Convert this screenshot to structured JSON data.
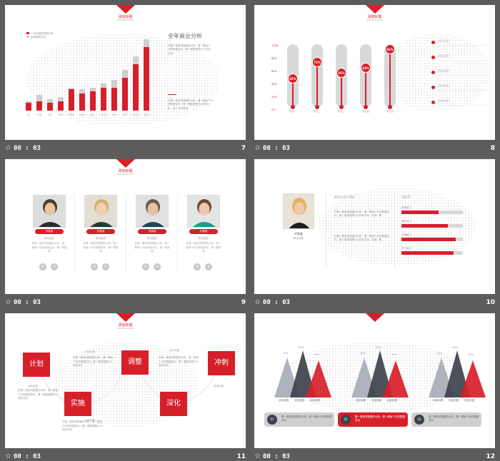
{
  "common": {
    "slide_tag": "添加标题",
    "subtitle": "PRESENTATION",
    "time": "00 : 03",
    "star": "☆"
  },
  "slides": [
    {
      "number": "7",
      "title": "全年商业分析",
      "legend": [
        "一年的销售数据分析",
        "定期数据分析"
      ],
      "categories": [
        "JA",
        "FEB",
        "MA",
        "APR",
        "MAY",
        "JUN",
        "JUL",
        "AUG",
        "SEP",
        "OCT",
        "NOV",
        "DEC"
      ],
      "body1": "在看一看某项数据的分析，看一看每个月的数据变化，看一看数据是什么样的分析",
      "body2": "在看一看某项数据的分析，看一看每个月的数据变化，看一看数据是什么样的分析，每个月的数据"
    },
    {
      "number": "8",
      "ticks": [
        "100%",
        "80%",
        "60%",
        "40%",
        "20%",
        "0%"
      ],
      "bars": [
        {
          "pct": "45%",
          "value": 45,
          "label": "学业一"
        },
        {
          "pct": "72%",
          "value": 72,
          "label": "学业二"
        },
        {
          "pct": "55%",
          "value": 55,
          "label": "学业三"
        },
        {
          "pct": "63%",
          "value": 63,
          "label": "学业四"
        },
        {
          "pct": "92%",
          "value": 92,
          "label": "学业五"
        }
      ],
      "years": [
        "2011年",
        "2012年",
        "2014年",
        "2015年",
        "2000年"
      ]
    },
    {
      "number": "9",
      "people": [
        {
          "name": "代表者",
          "role": "职位描述"
        },
        {
          "name": "代表者",
          "role": "职位描述"
        },
        {
          "name": "代表者",
          "role": "职位描述"
        },
        {
          "name": "代表者",
          "role": "职位描述"
        }
      ],
      "desc": "在看一看某项数据的分析，看一看每个月的数据变化，看一看数据"
    },
    {
      "number": "10",
      "about_title": "About Me",
      "skill_title": "Skill",
      "name": "代表者",
      "role": "职位描述",
      "about1": "在看一看某项数据的分析，看一看每个月的数据变化，看一看数据是什么样的分析，在看一看",
      "about2": "在看一看某项数据的分析，看一看每个月的数据变化，看一看数据是什么样的分析，在看一看",
      "skills": [
        {
          "label": "资源能力",
          "value": 60
        },
        {
          "label": "团队能力",
          "value": 75
        },
        {
          "label": "沟通能力",
          "value": 88
        },
        {
          "label": "学习能力",
          "value": 85
        }
      ]
    },
    {
      "number": "11",
      "boxes": [
        "计划",
        "调整",
        "冲刺",
        "实施",
        "深化"
      ],
      "caption": "添加标题",
      "desc": "在看一看某项数据的分析，看一看每个月的数据变化，看一看数据是什么样的分析"
    },
    {
      "number": "12",
      "groups": [
        {
          "pcts": [
            "40%",
            "60%",
            "40%"
          ],
          "labels": [
            "添加标题",
            "添加标题",
            "添加标题"
          ]
        },
        {
          "pcts": [
            "40%",
            "60%",
            "40%"
          ],
          "labels": [
            "添加标题",
            "添加标题",
            "添加标题"
          ]
        },
        {
          "pcts": [
            "40%",
            "60%",
            "40%"
          ],
          "labels": [
            "添加标题",
            "添加标题",
            "添加标题"
          ]
        }
      ],
      "steps": [
        {
          "num": "01",
          "text": "看一看某项数据的分析，看一看每个月的数据变化"
        },
        {
          "num": "02",
          "text": "看一看某项数据的分析，看一看每个月的数据变化"
        },
        {
          "num": "03",
          "text": "看一看某项数据的分析，看一看每个月的数据变化"
        }
      ]
    }
  ],
  "chart_data": [
    {
      "type": "bar",
      "categories": [
        "JA",
        "FEB",
        "MA",
        "APR",
        "MAY",
        "JUN",
        "JUL",
        "AUG",
        "SEP",
        "OCT",
        "NOV",
        "DEC"
      ],
      "series": [
        {
          "name": "一年的销售数据分析",
          "values": [
            4,
            5,
            4,
            5,
            11,
            9,
            10,
            12,
            12,
            17,
            24,
            33
          ]
        },
        {
          "name": "定期数据分析",
          "values": [
            5,
            8,
            6,
            7,
            12,
            11,
            12,
            14,
            16,
            21,
            28,
            37
          ]
        }
      ],
      "colors": [
        "#d71f2a",
        "#cfcfcf"
      ],
      "title": "全年商业分析",
      "grid": false
    },
    {
      "type": "bar",
      "categories": [
        "学业一",
        "学业二",
        "学业三",
        "学业四",
        "学业五"
      ],
      "values": [
        45,
        72,
        55,
        63,
        92
      ],
      "ylim": [
        0,
        100
      ]
    }
  ]
}
